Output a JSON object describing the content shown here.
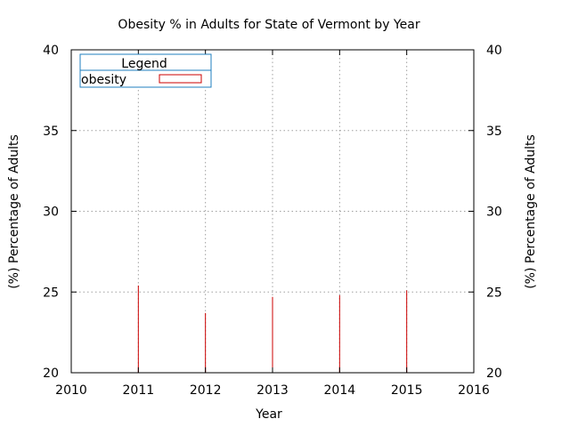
{
  "chart_data": {
    "type": "bar",
    "title": "Obesity % in Adults for State of Vermont by Year",
    "xlabel": "Year",
    "ylabel": "(%) Percentage of Adults",
    "y2label": "(%) Percentage of Adults",
    "xlim": [
      2010,
      2016
    ],
    "ylim": [
      20,
      40
    ],
    "x_ticks": [
      "2010",
      "2011",
      "2012",
      "2013",
      "2014",
      "2015",
      "2016"
    ],
    "y_ticks": [
      "20",
      "25",
      "30",
      "35",
      "40"
    ],
    "grid": true,
    "legend": {
      "title": "Legend",
      "placement": "top-left",
      "entries": [
        {
          "label": "obesity",
          "color": "#cc0000"
        }
      ]
    },
    "series": [
      {
        "name": "obesity",
        "color": "#cc0000",
        "x": [
          2011,
          2012,
          2013,
          2014,
          2015
        ],
        "values": [
          25.4,
          23.7,
          24.7,
          24.8,
          25.1
        ]
      }
    ]
  }
}
